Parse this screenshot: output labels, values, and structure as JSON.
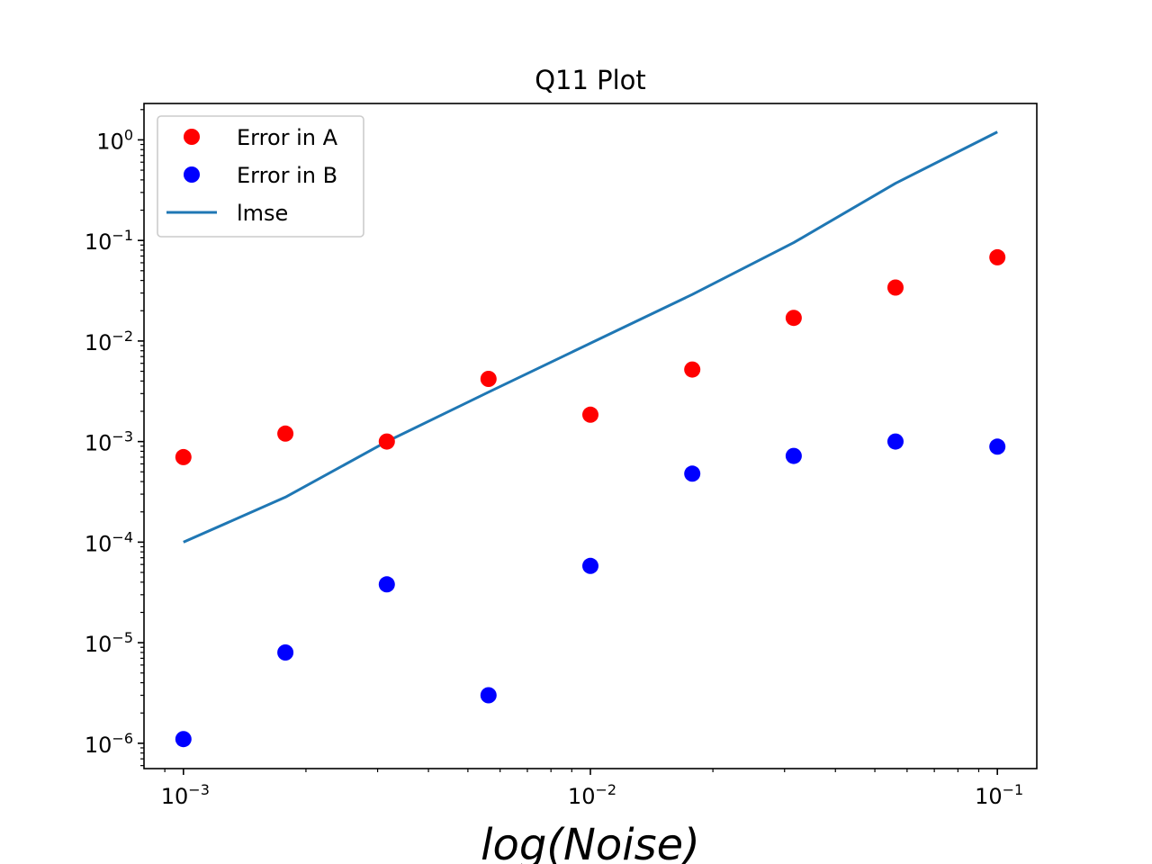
{
  "chart_data": {
    "type": "scatter",
    "title": "Q11  Plot",
    "xlabel": "log(Noise)",
    "ylabel": "",
    "xscale": "log",
    "yscale": "log",
    "xlim": [
      0.0008,
      0.125
    ],
    "ylim": [
      5.6e-07,
      2.3
    ],
    "grid": false,
    "legend_position": "top-left",
    "x_ticks": [
      {
        "base": "10",
        "exp": "−3",
        "value": 0.001
      },
      {
        "base": "10",
        "exp": "−2",
        "value": 0.01
      },
      {
        "base": "10",
        "exp": "−1",
        "value": 0.1
      }
    ],
    "y_ticks": [
      {
        "base": "10",
        "exp": "0",
        "value": 1
      },
      {
        "base": "10",
        "exp": "−1",
        "value": 0.1
      },
      {
        "base": "10",
        "exp": "−2",
        "value": 0.01
      },
      {
        "base": "10",
        "exp": "−3",
        "value": 0.001
      },
      {
        "base": "10",
        "exp": "−4",
        "value": 0.0001
      },
      {
        "base": "10",
        "exp": "−5",
        "value": 1e-05
      },
      {
        "base": "10",
        "exp": "−6",
        "value": 1e-06
      }
    ],
    "x": [
      0.001,
      0.00178,
      0.00316,
      0.00562,
      0.01,
      0.0178,
      0.0316,
      0.0562,
      0.1
    ],
    "series": [
      {
        "name": "Error in A",
        "type": "scatter",
        "color": "#ff0000",
        "values": [
          0.0007,
          0.0012,
          0.001,
          0.0042,
          0.00185,
          0.0052,
          0.017,
          0.034,
          0.068
        ]
      },
      {
        "name": "Error in B",
        "type": "scatter",
        "color": "#0000ff",
        "values": [
          1.1e-06,
          8e-06,
          3.8e-05,
          3e-06,
          5.8e-05,
          0.00048,
          0.00072,
          0.001,
          0.00089
        ]
      },
      {
        "name": "lmse",
        "type": "line",
        "color": "#1f77b4",
        "values": [
          0.0001,
          0.00028,
          0.001,
          0.0031,
          0.0095,
          0.029,
          0.095,
          0.37,
          1.2
        ]
      }
    ]
  }
}
